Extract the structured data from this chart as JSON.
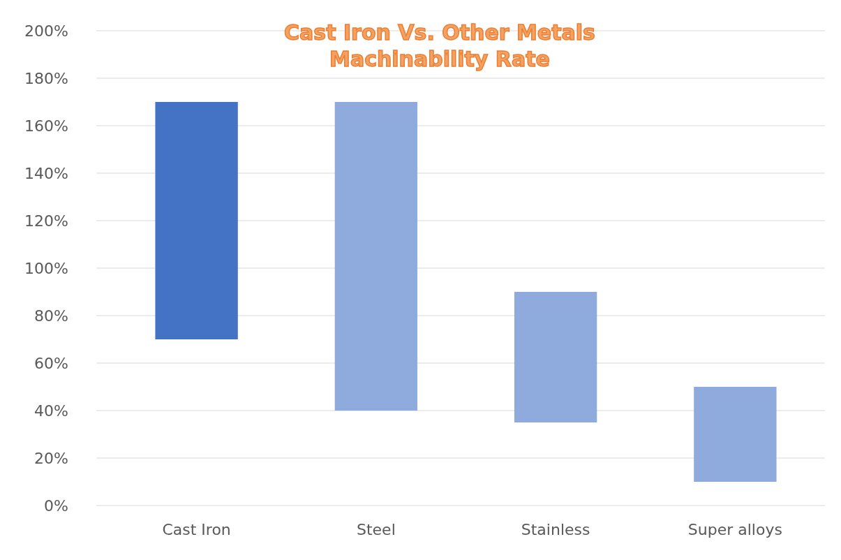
{
  "chart_data": {
    "type": "bar",
    "title": "Cast Iron Vs. Other Metals\nMachinability Rate",
    "categories": [
      "Cast Iron",
      "Steel",
      "Stainless",
      "Super alloys"
    ],
    "base": [
      70,
      40,
      35,
      10
    ],
    "values": [
      100,
      130,
      55,
      40
    ],
    "colors": [
      "#4472c4",
      "#8faadc",
      "#8faadc",
      "#8faadc"
    ],
    "ylim": [
      0,
      200
    ],
    "yticks": [
      {
        "value": 0,
        "label": "0%"
      },
      {
        "value": 20,
        "label": "20%"
      },
      {
        "value": 40,
        "label": "40%"
      },
      {
        "value": 60,
        "label": "60%"
      },
      {
        "value": 80,
        "label": "80%"
      },
      {
        "value": 100,
        "label": "100%"
      },
      {
        "value": 120,
        "label": "120%"
      },
      {
        "value": 140,
        "label": "140%"
      },
      {
        "value": 160,
        "label": "160%"
      },
      {
        "value": 180,
        "label": "180%"
      },
      {
        "value": 200,
        "label": "200%"
      }
    ],
    "grid": "y"
  }
}
